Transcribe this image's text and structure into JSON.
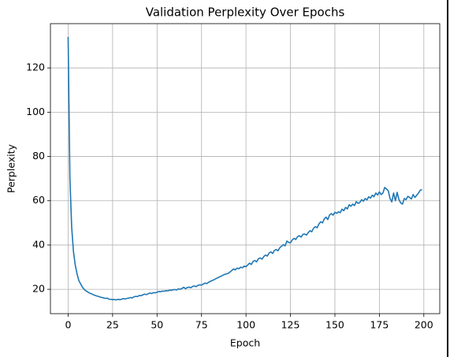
{
  "chart_data": {
    "type": "line",
    "title": "Validation Perplexity Over Epochs",
    "xlabel": "Epoch",
    "ylabel": "Perplexity",
    "x": [
      0,
      1,
      2,
      3,
      4,
      5,
      6,
      7,
      8,
      9,
      10,
      11,
      12,
      13,
      14,
      15,
      16,
      17,
      18,
      19,
      20,
      21,
      22,
      23,
      24,
      25,
      26,
      27,
      28,
      29,
      30,
      31,
      32,
      33,
      34,
      35,
      36,
      37,
      38,
      39,
      40,
      41,
      42,
      43,
      44,
      45,
      46,
      47,
      48,
      49,
      50,
      51,
      52,
      53,
      54,
      55,
      56,
      57,
      58,
      59,
      60,
      61,
      62,
      63,
      64,
      65,
      66,
      67,
      68,
      69,
      70,
      71,
      72,
      73,
      74,
      75,
      76,
      77,
      78,
      79,
      80,
      81,
      82,
      83,
      84,
      85,
      86,
      87,
      88,
      89,
      90,
      91,
      92,
      93,
      94,
      95,
      96,
      97,
      98,
      99,
      100,
      101,
      102,
      103,
      104,
      105,
      106,
      107,
      108,
      109,
      110,
      111,
      112,
      113,
      114,
      115,
      116,
      117,
      118,
      119,
      120,
      121,
      122,
      123,
      124,
      125,
      126,
      127,
      128,
      129,
      130,
      131,
      132,
      133,
      134,
      135,
      136,
      137,
      138,
      139,
      140,
      141,
      142,
      143,
      144,
      145,
      146,
      147,
      148,
      149,
      150,
      151,
      152,
      153,
      154,
      155,
      156,
      157,
      158,
      159,
      160,
      161,
      162,
      163,
      164,
      165,
      166,
      167,
      168,
      169,
      170,
      171,
      172,
      173,
      174,
      175,
      176,
      177,
      178,
      179,
      180,
      181,
      182,
      183,
      184,
      185,
      186,
      187,
      188,
      189,
      190,
      191,
      192,
      193,
      194,
      195,
      196,
      197,
      198,
      199
    ],
    "series": [
      {
        "color": "#1f77b4",
        "values": [
          134,
          70,
          48,
          37,
          31,
          27,
          24,
          22.5,
          21,
          20,
          19.3,
          18.8,
          18.3,
          18,
          17.6,
          17.3,
          17,
          16.8,
          16.5,
          16.3,
          16.1,
          15.9,
          16,
          15.5,
          15.5,
          15.3,
          15.4,
          15.2,
          15.5,
          15.3,
          15.5,
          15.8,
          15.6,
          15.9,
          16,
          16.3,
          16.1,
          16.6,
          16.8,
          16.7,
          17.2,
          17.1,
          17.5,
          17.8,
          17.6,
          18,
          18.3,
          18.1,
          18.5,
          18.4,
          18.7,
          19,
          18.9,
          19.2,
          19.1,
          19.4,
          19.3,
          19.6,
          19.5,
          19.8,
          19.9,
          19.7,
          20.2,
          20,
          20.4,
          20.9,
          20.3,
          20.8,
          21,
          20.7,
          21.3,
          21.5,
          21.2,
          21.8,
          22,
          21.9,
          22.4,
          22.8,
          22.6,
          23.2,
          23.6,
          24,
          24.3,
          24.8,
          25.1,
          25.6,
          25.9,
          26.4,
          26.7,
          27,
          27.2,
          27.8,
          28.5,
          29.2,
          28.8,
          29.6,
          29.3,
          30,
          29.7,
          30.5,
          30.2,
          31,
          31.8,
          31.2,
          32.6,
          33,
          32.4,
          33.8,
          34.2,
          33.6,
          34.8,
          35.5,
          35,
          36.4,
          36.9,
          36.2,
          37.6,
          38,
          37.4,
          38.8,
          39.5,
          40.2,
          39.6,
          41.8,
          41.2,
          41,
          42.3,
          43,
          42.5,
          43.8,
          44.2,
          43.6,
          44.8,
          45,
          44.5,
          45.6,
          46.5,
          46,
          47.6,
          48.3,
          47.8,
          49.5,
          50.5,
          50,
          51.8,
          52.6,
          51.5,
          53.6,
          54.2,
          53.5,
          54.8,
          54.3,
          55,
          54.6,
          56.2,
          55.5,
          57,
          56.3,
          58.2,
          57.5,
          58.5,
          57.8,
          59.6,
          58.8,
          59.2,
          60.5,
          59.8,
          61,
          60.4,
          61.8,
          61.2,
          62.5,
          61.8,
          63.5,
          62.6,
          64,
          62.8,
          63.5,
          66,
          65.3,
          64.5,
          61,
          59.5,
          63.5,
          60,
          63.8,
          60.5,
          59,
          58.5,
          61,
          60.5,
          62,
          61.5,
          60.8,
          62.8,
          61.5,
          62.5,
          63.5,
          64.8,
          65
        ]
      }
    ],
    "xlim": [
      -9.95,
      208.95
    ],
    "ylim": [
      9,
      140
    ],
    "xticks": [
      0,
      25,
      50,
      75,
      100,
      125,
      150,
      175,
      200
    ],
    "yticks": [
      20,
      40,
      60,
      80,
      100,
      120
    ],
    "grid": true
  }
}
